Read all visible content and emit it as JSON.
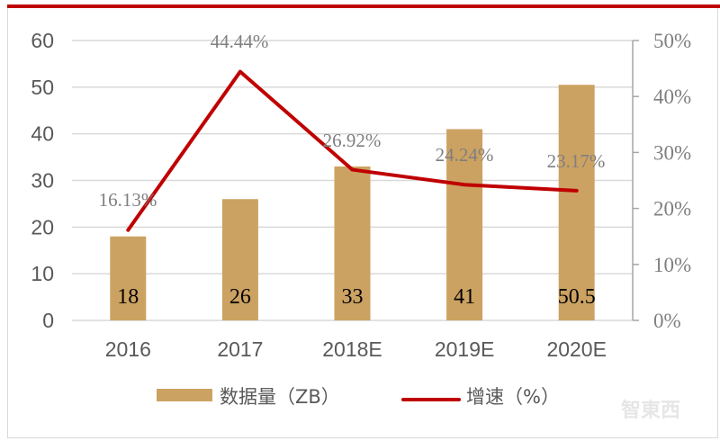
{
  "chart_data": {
    "type": "bar",
    "categories": [
      "2016",
      "2017",
      "2018E",
      "2019E",
      "2020E"
    ],
    "series": [
      {
        "name": "数据量（ZB）",
        "type": "bar",
        "axis": "left",
        "color": "#cca262",
        "values": [
          18,
          26,
          33,
          41,
          50.5
        ],
        "labels": [
          "18",
          "26",
          "33",
          "41",
          "50.5"
        ]
      },
      {
        "name": "增速（%）",
        "type": "line",
        "axis": "right",
        "color": "#c00000",
        "values": [
          16.13,
          44.44,
          26.92,
          24.24,
          23.17
        ],
        "labels": [
          "16.13%",
          "44.44%",
          "26.92%",
          "24.24%",
          "23.17%"
        ]
      }
    ],
    "title": "",
    "xlabel": "",
    "ylabel": "",
    "ylim": [
      0,
      60
    ],
    "y_ticks": [
      "0",
      "10",
      "20",
      "30",
      "40",
      "50",
      "60"
    ],
    "y2lim": [
      0,
      50
    ],
    "y2_ticks": [
      "0%",
      "10%",
      "20%",
      "30%",
      "40%",
      "50%"
    ],
    "grid": true,
    "legend_position": "bottom"
  },
  "legend": {
    "bar_label": "数据量（ZB）",
    "line_label": "增速（%）"
  },
  "watermark": "智東西",
  "colors": {
    "accent": "#c00000",
    "bar": "#cca262",
    "grid": "#d9d9d9"
  }
}
